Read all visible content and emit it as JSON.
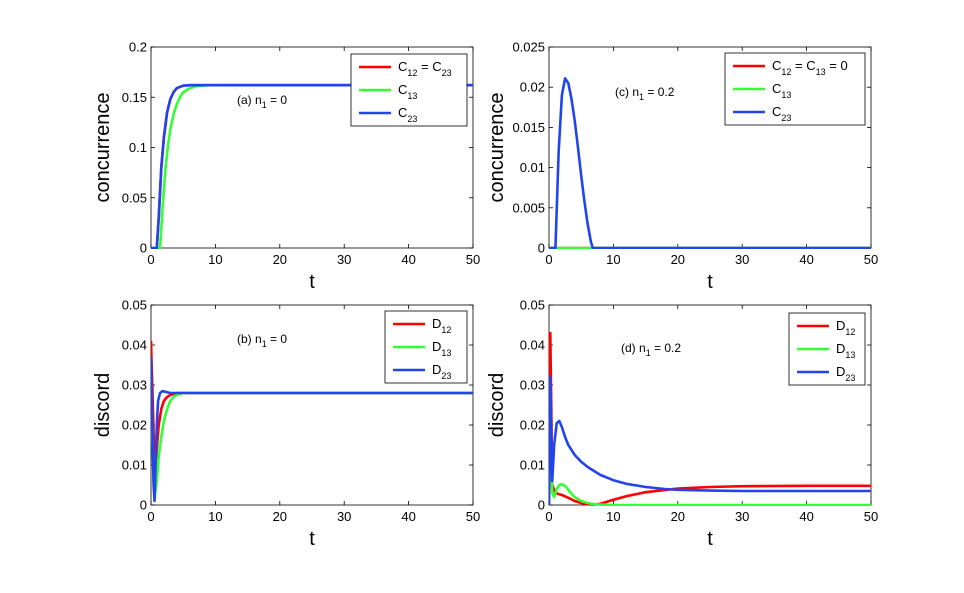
{
  "chart_data": [
    {
      "id": "a",
      "type": "line",
      "annotation": {
        "text": "(a) n",
        "sub": "1",
        "after": " = 0"
      },
      "xlabel": "t",
      "ylabel": "concurrence",
      "xlim": [
        0,
        50
      ],
      "ylim": [
        0,
        0.2
      ],
      "xticks": [
        0,
        10,
        20,
        30,
        40,
        50
      ],
      "xtick_labels": [
        "0",
        "10",
        "20",
        "30",
        "40",
        "50"
      ],
      "yticks": [
        0,
        0.05,
        0.1,
        0.15,
        0.2
      ],
      "ytick_labels": [
        "0",
        "0.05",
        "0.1",
        "0.15",
        "0.2"
      ],
      "legend_position": "top-right",
      "series": [
        {
          "name": "C12 = C23",
          "legend": [
            {
              "t": "C"
            },
            {
              "t": "12",
              "sub": true
            },
            {
              "t": " = C"
            },
            {
              "t": "23",
              "sub": true
            }
          ],
          "color": "#ff0000",
          "x": [
            0,
            0.9,
            1.2,
            1.6,
            2.0,
            2.5,
            3.0,
            3.5,
            4.0,
            5.0,
            6.0,
            8.0,
            12,
            50
          ],
          "y": [
            0,
            0,
            0.03,
            0.08,
            0.11,
            0.135,
            0.148,
            0.155,
            0.159,
            0.1615,
            0.162,
            0.162,
            0.162,
            0.162
          ]
        },
        {
          "name": "C13",
          "legend": [
            {
              "t": "C"
            },
            {
              "t": "13",
              "sub": true
            }
          ],
          "color": "#33ff33",
          "x": [
            0,
            1.4,
            1.8,
            2.2,
            2.6,
            3.0,
            3.5,
            4.0,
            4.5,
            5.0,
            6.0,
            7.0,
            9.0,
            12,
            50
          ],
          "y": [
            0,
            0,
            0.04,
            0.075,
            0.1,
            0.118,
            0.133,
            0.143,
            0.15,
            0.155,
            0.159,
            0.161,
            0.162,
            0.162,
            0.162
          ]
        },
        {
          "name": "C23",
          "legend": [
            {
              "t": "C"
            },
            {
              "t": "23",
              "sub": true
            }
          ],
          "color": "#2244ee",
          "x": [
            0,
            0.9,
            1.2,
            1.6,
            2.0,
            2.5,
            3.0,
            3.5,
            4.0,
            5.0,
            6.0,
            8.0,
            12,
            50
          ],
          "y": [
            0,
            0,
            0.03,
            0.08,
            0.11,
            0.135,
            0.148,
            0.155,
            0.159,
            0.1615,
            0.162,
            0.162,
            0.162,
            0.162
          ]
        }
      ]
    },
    {
      "id": "c",
      "type": "line",
      "annotation": {
        "text": "(c) n",
        "sub": "1",
        "after": " = 0.2"
      },
      "xlabel": "t",
      "ylabel": "concurrence",
      "xlim": [
        0,
        50
      ],
      "ylim": [
        0,
        0.025
      ],
      "xticks": [
        0,
        10,
        20,
        30,
        40,
        50
      ],
      "xtick_labels": [
        "0",
        "10",
        "20",
        "30",
        "40",
        "50"
      ],
      "yticks": [
        0,
        0.005,
        0.01,
        0.015,
        0.02,
        0.025
      ],
      "ytick_labels": [
        "0",
        "0.005",
        "0.01",
        "0.015",
        "0.02",
        "0.025"
      ],
      "legend_position": "top-right",
      "series": [
        {
          "name": "C12 = C13 = 0",
          "legend": [
            {
              "t": "C"
            },
            {
              "t": "12",
              "sub": true
            },
            {
              "t": " = C"
            },
            {
              "t": "13",
              "sub": true
            },
            {
              "t": " = 0"
            }
          ],
          "color": "#ff0000",
          "x": [
            0,
            50
          ],
          "y": [
            0,
            0
          ]
        },
        {
          "name": "C13",
          "legend": [
            {
              "t": "C"
            },
            {
              "t": "13",
              "sub": true
            }
          ],
          "color": "#33ff33",
          "x": [
            0,
            50
          ],
          "y": [
            0,
            0
          ]
        },
        {
          "name": "C23",
          "legend": [
            {
              "t": "C"
            },
            {
              "t": "23",
              "sub": true
            }
          ],
          "color": "#2244ee",
          "x": [
            0,
            1.0,
            1.5,
            2.0,
            2.5,
            3.0,
            3.5,
            4.0,
            4.5,
            5.0,
            5.5,
            6.0,
            6.5,
            6.8,
            50
          ],
          "y": [
            0,
            0,
            0.012,
            0.019,
            0.0211,
            0.0205,
            0.0185,
            0.0158,
            0.0125,
            0.009,
            0.0058,
            0.003,
            0.0008,
            0,
            0
          ]
        }
      ]
    },
    {
      "id": "b",
      "type": "line",
      "annotation": {
        "text": "(b) n",
        "sub": "1",
        "after": " = 0"
      },
      "xlabel": "t",
      "ylabel": "discord",
      "xlim": [
        0,
        50
      ],
      "ylim": [
        0,
        0.05
      ],
      "xticks": [
        0,
        10,
        20,
        30,
        40,
        50
      ],
      "xtick_labels": [
        "0",
        "10",
        "20",
        "30",
        "40",
        "50"
      ],
      "yticks": [
        0,
        0.01,
        0.02,
        0.03,
        0.04,
        0.05
      ],
      "ytick_labels": [
        "0",
        "0.01",
        "0.02",
        "0.03",
        "0.04",
        "0.05"
      ],
      "legend_position": "top-right",
      "series": [
        {
          "name": "D12",
          "legend": [
            {
              "t": "D"
            },
            {
              "t": "12",
              "sub": true
            }
          ],
          "color": "#ff0000",
          "x": [
            0,
            0.05,
            0.2,
            0.4,
            0.6,
            0.9,
            1.2,
            1.6,
            2.0,
            2.5,
            3.0,
            4.0,
            6.0,
            50
          ],
          "y": [
            0.041,
            0.038,
            0.03,
            0.018,
            0.008,
            0.014,
            0.02,
            0.024,
            0.026,
            0.027,
            0.0275,
            0.028,
            0.028,
            0.028
          ]
        },
        {
          "name": "D13",
          "legend": [
            {
              "t": "D"
            },
            {
              "t": "13",
              "sub": true
            }
          ],
          "color": "#33ff33",
          "x": [
            0,
            0.05,
            0.2,
            0.4,
            0.6,
            0.9,
            1.2,
            1.6,
            2.0,
            2.5,
            3.0,
            3.5,
            4.0,
            5.0,
            6.0,
            50
          ],
          "y": [
            0.036,
            0.03,
            0.018,
            0.006,
            0.002,
            0.006,
            0.012,
            0.017,
            0.021,
            0.024,
            0.026,
            0.027,
            0.0275,
            0.028,
            0.028,
            0.028
          ]
        },
        {
          "name": "D23",
          "legend": [
            {
              "t": "D"
            },
            {
              "t": "23",
              "sub": true
            }
          ],
          "color": "#2244ee",
          "x": [
            0,
            0.05,
            0.2,
            0.4,
            0.55,
            0.7,
            0.9,
            1.1,
            1.4,
            1.8,
            2.2,
            3.0,
            4.0,
            50
          ],
          "y": [
            0.037,
            0.034,
            0.02,
            0.005,
            0.001,
            0.01,
            0.02,
            0.026,
            0.028,
            0.0285,
            0.0283,
            0.028,
            0.028,
            0.028
          ]
        }
      ]
    },
    {
      "id": "d",
      "type": "line",
      "annotation": {
        "text": "(d) n",
        "sub": "1",
        "after": " = 0.2"
      },
      "xlabel": "t",
      "ylabel": "discord",
      "xlim": [
        0,
        50
      ],
      "ylim": [
        0,
        0.05
      ],
      "xticks": [
        0,
        10,
        20,
        30,
        40,
        50
      ],
      "xtick_labels": [
        "0",
        "10",
        "20",
        "30",
        "40",
        "50"
      ],
      "yticks": [
        0,
        0.01,
        0.02,
        0.03,
        0.04,
        0.05
      ],
      "ytick_labels": [
        "0",
        "0.01",
        "0.02",
        "0.03",
        "0.04",
        "0.05"
      ],
      "legend_position": "top-right",
      "series": [
        {
          "name": "D12",
          "legend": [
            {
              "t": "D"
            },
            {
              "t": "12",
              "sub": true
            }
          ],
          "color": "#ff0000",
          "x": [
            0,
            0.1,
            0.2,
            0.35,
            0.5,
            1.0,
            2.0,
            3.0,
            4.0,
            5.0,
            6.0,
            7.0,
            8.0,
            9.0,
            10,
            12,
            15,
            20,
            25,
            30,
            40,
            50
          ],
          "y": [
            0,
            0.02,
            0.043,
            0.025,
            0.005,
            0.003,
            0.0025,
            0.0018,
            0.001,
            0.0005,
            0.0002,
            0.0001,
            0.0003,
            0.0008,
            0.0013,
            0.0022,
            0.0032,
            0.0041,
            0.0045,
            0.0047,
            0.0048,
            0.0048
          ]
        },
        {
          "name": "D13",
          "legend": [
            {
              "t": "D"
            },
            {
              "t": "13",
              "sub": true
            }
          ],
          "color": "#33ff33",
          "x": [
            0,
            0.1,
            0.2,
            0.35,
            0.5,
            0.8,
            1.2,
            1.6,
            2.0,
            2.5,
            3.0,
            3.5,
            4.0,
            5.0,
            6.0,
            7.0,
            8.0,
            10,
            15,
            50
          ],
          "y": [
            0,
            0.012,
            0.022,
            0.012,
            0.003,
            0.002,
            0.004,
            0.005,
            0.0052,
            0.0048,
            0.0038,
            0.0028,
            0.002,
            0.001,
            0.0005,
            0.0002,
            0.0001,
            0,
            0,
            0
          ]
        },
        {
          "name": "D23",
          "legend": [
            {
              "t": "D"
            },
            {
              "t": "23",
              "sub": true
            }
          ],
          "color": "#2244ee",
          "x": [
            0,
            0.1,
            0.2,
            0.35,
            0.5,
            0.8,
            1.2,
            1.6,
            2.0,
            2.5,
            3.0,
            4.0,
            5.0,
            6.0,
            8.0,
            10,
            12,
            15,
            18,
            20,
            25,
            30,
            40,
            50
          ],
          "y": [
            0,
            0.015,
            0.032,
            0.018,
            0.006,
            0.015,
            0.0205,
            0.021,
            0.0195,
            0.017,
            0.015,
            0.0125,
            0.0108,
            0.0095,
            0.0075,
            0.0062,
            0.0053,
            0.0045,
            0.004,
            0.0038,
            0.0036,
            0.0035,
            0.0035,
            0.0035
          ]
        }
      ]
    }
  ]
}
